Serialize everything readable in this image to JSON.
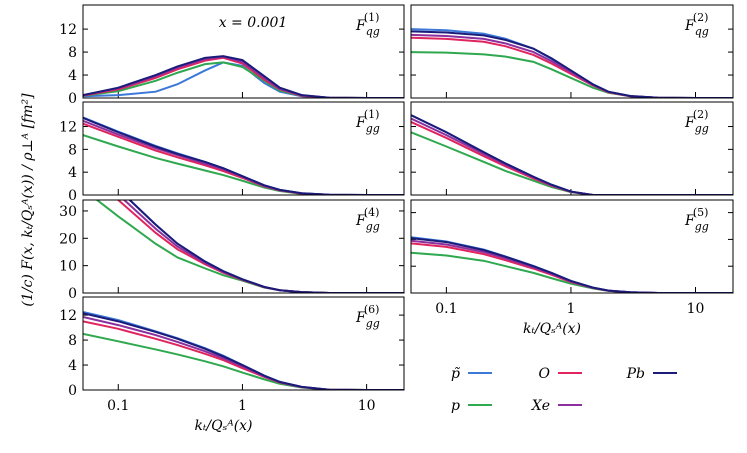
{
  "chart_data": [
    {
      "type": "line",
      "panel": {
        "base": "F",
        "sub": "qg",
        "sup": "(1)"
      },
      "annotation": "x = 0.001",
      "ylabel": "(1/c) F(x, kₜ/Qₛᴬ(x)) / ρ⊥ᴬ [fm²]",
      "x": [
        0.052,
        0.1,
        0.2,
        0.3,
        0.5,
        0.7,
        1,
        1.5,
        2,
        3,
        5,
        10,
        20
      ],
      "log_x": true,
      "xlim": [
        0.052,
        20
      ],
      "xticks": [
        0.1,
        1,
        10
      ],
      "ylim": [
        0,
        16.2
      ],
      "yticks": [
        0,
        4,
        8,
        12
      ],
      "series": [
        {
          "name": "p̃",
          "color": "#3b78d8",
          "values": [
            0.3,
            0.5,
            1.1,
            2.4,
            4.8,
            6.2,
            5.6,
            2.6,
            1.1,
            0.3,
            0.05,
            0,
            0
          ]
        },
        {
          "name": "p",
          "color": "#2fa84f",
          "values": [
            0.4,
            1.2,
            3.0,
            4.4,
            5.9,
            6.2,
            5.4,
            3.0,
            1.3,
            0.4,
            0.05,
            0,
            0
          ]
        },
        {
          "name": "O",
          "color": "#e0245e",
          "values": [
            0.4,
            1.5,
            3.5,
            5.0,
            6.5,
            7.0,
            6.0,
            3.2,
            1.5,
            0.4,
            0.05,
            0,
            0
          ]
        },
        {
          "name": "Xe",
          "color": "#8b2f9e",
          "values": [
            0.5,
            1.7,
            3.8,
            5.3,
            6.8,
            7.2,
            6.3,
            3.5,
            1.6,
            0.5,
            0.05,
            0,
            0
          ]
        },
        {
          "name": "Pb",
          "color": "#1b1b7a",
          "values": [
            0.5,
            1.8,
            4.0,
            5.5,
            7.0,
            7.3,
            6.6,
            3.8,
            1.8,
            0.5,
            0.05,
            0,
            0
          ]
        }
      ]
    },
    {
      "type": "line",
      "panel": {
        "base": "F",
        "sub": "qg",
        "sup": "(2)"
      },
      "x": [
        0.052,
        0.1,
        0.2,
        0.3,
        0.5,
        0.7,
        1,
        1.5,
        2,
        3,
        5,
        10,
        20
      ],
      "log_x": true,
      "xlim": [
        0.052,
        20
      ],
      "xticks": [
        0.1,
        1,
        10
      ],
      "ylim": [
        0,
        16.2
      ],
      "yticks": [
        0,
        4,
        8,
        12
      ],
      "series": [
        {
          "name": "p̃",
          "color": "#3b78d8",
          "values": [
            12.0,
            11.8,
            11.2,
            10.3,
            8.6,
            6.8,
            4.6,
            2.3,
            1.0,
            0.3,
            0.05,
            0,
            0
          ]
        },
        {
          "name": "p",
          "color": "#2fa84f",
          "values": [
            8.0,
            7.9,
            7.6,
            7.2,
            6.3,
            5.0,
            3.5,
            1.8,
            0.9,
            0.3,
            0.05,
            0,
            0
          ]
        },
        {
          "name": "O",
          "color": "#e0245e",
          "values": [
            10.5,
            10.3,
            9.8,
            9.0,
            7.5,
            6.0,
            4.2,
            2.2,
            1.0,
            0.3,
            0.05,
            0,
            0
          ]
        },
        {
          "name": "Xe",
          "color": "#8b2f9e",
          "values": [
            11.0,
            10.8,
            10.3,
            9.5,
            8.0,
            6.4,
            4.5,
            2.3,
            1.05,
            0.32,
            0.05,
            0,
            0
          ]
        },
        {
          "name": "Pb",
          "color": "#1b1b7a",
          "values": [
            11.6,
            11.4,
            10.9,
            10.1,
            8.6,
            6.9,
            4.8,
            2.4,
            1.1,
            0.35,
            0.05,
            0,
            0
          ]
        }
      ]
    },
    {
      "type": "line",
      "panel": {
        "base": "F",
        "sub": "gg",
        "sup": "(1)"
      },
      "x": [
        0.052,
        0.1,
        0.2,
        0.3,
        0.5,
        0.7,
        1,
        1.5,
        2,
        3,
        5,
        10,
        20
      ],
      "log_x": true,
      "xlim": [
        0.052,
        20
      ],
      "xticks": [
        0.1,
        1,
        10
      ],
      "ylim": [
        0,
        16.3
      ],
      "yticks": [
        0,
        4,
        8,
        12
      ],
      "series": [
        {
          "name": "p̃",
          "color": "#3b78d8",
          "values": [
            13.6,
            11.1,
            8.6,
            7.3,
            5.8,
            4.7,
            3.3,
            1.7,
            0.9,
            0.3,
            0.05,
            0,
            0
          ]
        },
        {
          "name": "p",
          "color": "#2fa84f",
          "values": [
            10.5,
            8.5,
            6.5,
            5.5,
            4.3,
            3.5,
            2.5,
            1.3,
            0.7,
            0.2,
            0,
            0,
            0
          ]
        },
        {
          "name": "O",
          "color": "#e0245e",
          "values": [
            12.5,
            10.2,
            7.8,
            6.6,
            5.2,
            4.2,
            3.0,
            1.5,
            0.8,
            0.25,
            0.03,
            0,
            0
          ]
        },
        {
          "name": "Xe",
          "color": "#8b2f9e",
          "values": [
            13.0,
            10.6,
            8.2,
            7.0,
            5.5,
            4.5,
            3.2,
            1.6,
            0.85,
            0.28,
            0.04,
            0,
            0
          ]
        },
        {
          "name": "Pb",
          "color": "#1b1b7a",
          "values": [
            13.5,
            11.0,
            8.5,
            7.2,
            5.8,
            4.7,
            3.3,
            1.7,
            0.9,
            0.3,
            0.05,
            0,
            0
          ]
        }
      ]
    },
    {
      "type": "line",
      "panel": {
        "base": "F",
        "sub": "gg",
        "sup": "(2)"
      },
      "x": [
        0.052,
        0.1,
        0.2,
        0.3,
        0.5,
        0.7,
        1,
        1.5,
        2,
        3,
        5,
        10,
        20
      ],
      "log_x": true,
      "xlim": [
        0.052,
        20
      ],
      "xticks": [
        0.1,
        1,
        10
      ],
      "ylim": [
        0,
        16.3
      ],
      "yticks": [
        0,
        4,
        8,
        12
      ],
      "series": [
        {
          "name": "p̃",
          "color": "#3b78d8",
          "values": [
            14.0,
            11.0,
            7.5,
            5.5,
            3.2,
            1.8,
            0.6,
            0,
            0,
            0,
            0,
            0,
            0
          ]
        },
        {
          "name": "p",
          "color": "#2fa84f",
          "values": [
            11.0,
            8.5,
            5.8,
            4.2,
            2.5,
            1.4,
            0.5,
            0,
            0,
            0,
            0,
            0,
            0
          ]
        },
        {
          "name": "O",
          "color": "#e0245e",
          "values": [
            12.8,
            10.0,
            6.8,
            5.0,
            2.9,
            1.6,
            0.55,
            0,
            0,
            0,
            0,
            0,
            0
          ]
        },
        {
          "name": "Xe",
          "color": "#8b2f9e",
          "values": [
            13.4,
            10.5,
            7.2,
            5.3,
            3.1,
            1.7,
            0.58,
            0,
            0,
            0,
            0,
            0,
            0
          ]
        },
        {
          "name": "Pb",
          "color": "#1b1b7a",
          "values": [
            14.0,
            11.0,
            7.5,
            5.5,
            3.2,
            1.8,
            0.6,
            0,
            0,
            0,
            0,
            0,
            0
          ]
        }
      ]
    },
    {
      "type": "line",
      "panel": {
        "base": "F",
        "sub": "gg",
        "sup": "(4)"
      },
      "x": [
        0.052,
        0.1,
        0.2,
        0.3,
        0.5,
        0.7,
        1,
        1.5,
        2,
        3,
        5,
        10,
        20
      ],
      "log_x": true,
      "xlim": [
        0.052,
        20
      ],
      "xticks": [
        0.1,
        1,
        10
      ],
      "ylim": [
        0,
        34
      ],
      "yticks": [
        0,
        10,
        20,
        30
      ],
      "series": [
        {
          "name": "p̃",
          "color": "#3b78d8",
          "values": [
            50,
            38,
            25,
            18,
            11.5,
            8.0,
            5.0,
            2.2,
            1.0,
            0.3,
            0,
            0,
            0
          ]
        },
        {
          "name": "p",
          "color": "#2fa84f",
          "values": [
            38,
            28,
            18,
            13,
            9.0,
            6.5,
            4.5,
            2.0,
            1.0,
            0.3,
            0,
            0,
            0
          ]
        },
        {
          "name": "O",
          "color": "#e0245e",
          "values": [
            45,
            34,
            22,
            16,
            10.5,
            7.4,
            4.8,
            2.1,
            1.0,
            0.3,
            0,
            0,
            0
          ]
        },
        {
          "name": "Xe",
          "color": "#8b2f9e",
          "values": [
            47,
            36,
            23.5,
            17,
            11,
            7.7,
            4.9,
            2.2,
            1.0,
            0.3,
            0,
            0,
            0
          ]
        },
        {
          "name": "Pb",
          "color": "#1b1b7a",
          "values": [
            50,
            38,
            25,
            18,
            11.5,
            8.0,
            5.0,
            2.2,
            1.0,
            0.3,
            0,
            0,
            0
          ]
        }
      ]
    },
    {
      "type": "line",
      "panel": {
        "base": "F",
        "sub": "gg",
        "sup": "(5)"
      },
      "xlabel": "kₜ/Qₛᴬ(x)",
      "xtick_labels": true,
      "x": [
        0.052,
        0.1,
        0.2,
        0.3,
        0.5,
        0.7,
        1,
        1.5,
        2,
        3,
        5,
        10,
        20
      ],
      "log_x": true,
      "xlim": [
        0.052,
        20
      ],
      "xticks": [
        0.1,
        1,
        10
      ],
      "ylim": [
        0,
        34.7
      ],
      "yticks": [
        0,
        10,
        20,
        30
      ],
      "series": [
        {
          "name": "p̃",
          "color": "#3b78d8",
          "values": [
            20.8,
            19.2,
            16.2,
            13.6,
            10.1,
            7.5,
            4.5,
            2.0,
            0.9,
            0.3,
            0,
            0,
            0
          ]
        },
        {
          "name": "p",
          "color": "#2fa84f",
          "values": [
            15,
            14,
            12,
            10,
            7.5,
            5.5,
            3.5,
            1.7,
            0.8,
            0.2,
            0,
            0,
            0
          ]
        },
        {
          "name": "O",
          "color": "#e0245e",
          "values": [
            18.5,
            17.2,
            14.5,
            12.2,
            9.1,
            6.8,
            4.1,
            1.9,
            0.85,
            0.25,
            0,
            0,
            0
          ]
        },
        {
          "name": "Xe",
          "color": "#8b2f9e",
          "values": [
            19.5,
            18.1,
            15.3,
            12.9,
            9.6,
            7.2,
            4.3,
            1.95,
            0.88,
            0.28,
            0,
            0,
            0
          ]
        },
        {
          "name": "Pb",
          "color": "#1b1b7a",
          "values": [
            20.5,
            19,
            16,
            13.5,
            10,
            7.5,
            4.5,
            2.0,
            0.9,
            0.3,
            0,
            0,
            0
          ]
        }
      ]
    },
    {
      "type": "line",
      "panel": {
        "base": "F",
        "sub": "gg",
        "sup": "(6)"
      },
      "xlabel": "kₜ/Qₛᴬ(x)",
      "xtick_labels": true,
      "legend": true,
      "x": [
        0.052,
        0.1,
        0.2,
        0.3,
        0.5,
        0.7,
        1,
        1.5,
        2,
        3,
        5,
        10,
        20
      ],
      "log_x": true,
      "xlim": [
        0.052,
        20
      ],
      "xticks": [
        0.1,
        1,
        10
      ],
      "ylim": [
        0,
        14.9
      ],
      "yticks": [
        0,
        4,
        8,
        12
      ],
      "series": [
        {
          "name": "p̃",
          "color": "#3b78d8",
          "values": [
            12.5,
            11.2,
            9.4,
            8.3,
            6.7,
            5.5,
            4.0,
            2.3,
            1.3,
            0.5,
            0.05,
            0,
            0
          ]
        },
        {
          "name": "p",
          "color": "#2fa84f",
          "values": [
            9.0,
            7.8,
            6.5,
            5.7,
            4.6,
            3.8,
            2.8,
            1.7,
            1.0,
            0.4,
            0.05,
            0,
            0
          ]
        },
        {
          "name": "O",
          "color": "#e0245e",
          "values": [
            11.0,
            9.8,
            8.2,
            7.2,
            5.8,
            4.8,
            3.5,
            2.1,
            1.2,
            0.45,
            0.05,
            0,
            0
          ]
        },
        {
          "name": "Xe",
          "color": "#8b2f9e",
          "values": [
            11.7,
            10.4,
            8.8,
            7.7,
            6.2,
            5.1,
            3.8,
            2.2,
            1.25,
            0.48,
            0.05,
            0,
            0
          ]
        },
        {
          "name": "Pb",
          "color": "#1b1b7a",
          "values": [
            12.3,
            11.0,
            9.3,
            8.2,
            6.6,
            5.4,
            4.0,
            2.3,
            1.3,
            0.5,
            0.05,
            0,
            0
          ]
        }
      ]
    }
  ]
}
